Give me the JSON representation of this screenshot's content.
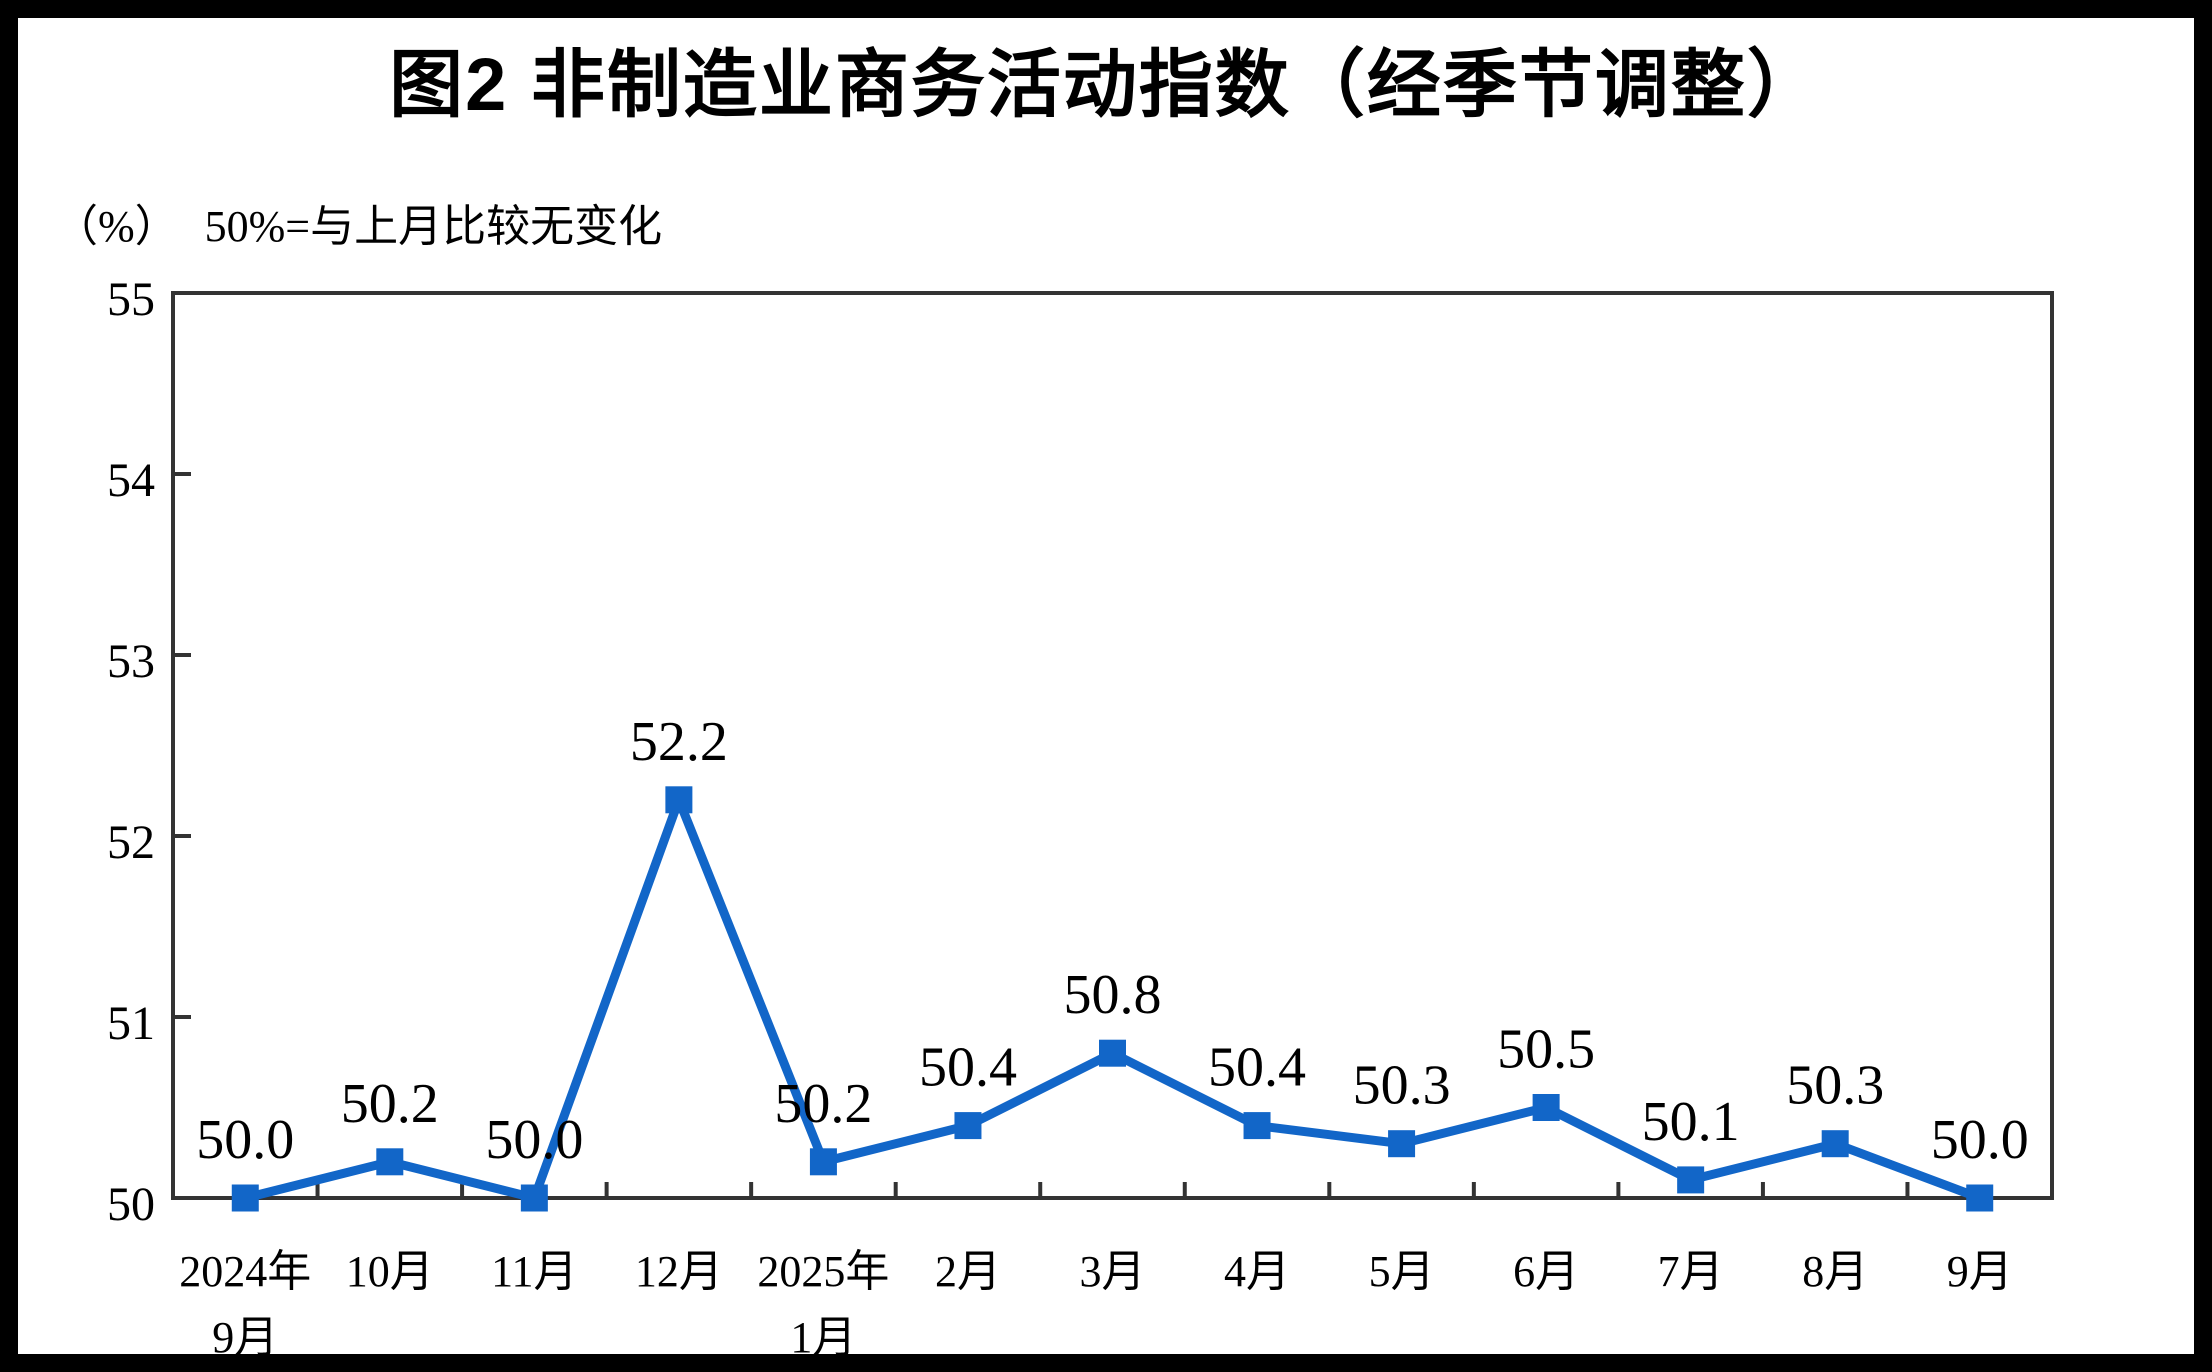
{
  "header": {
    "title": "图2 非制造业商务活动指数（经季节调整）"
  },
  "axis_note": {
    "unit": "（%）",
    "text": "50%=与上月比较无变化"
  },
  "chart_data": {
    "type": "line",
    "title": "图2 非制造业商务活动指数（经季节调整）",
    "subtitle": "（%）50%=与上月比较无变化",
    "categories": [
      [
        "2024年",
        "9月"
      ],
      [
        "10月"
      ],
      [
        "11月"
      ],
      [
        "12月"
      ],
      [
        "2025年",
        "1月"
      ],
      [
        "2月"
      ],
      [
        "3月"
      ],
      [
        "4月"
      ],
      [
        "5月"
      ],
      [
        "6月"
      ],
      [
        "7月"
      ],
      [
        "8月"
      ],
      [
        "9月"
      ]
    ],
    "series": [
      {
        "name": "非制造业商务活动指数",
        "values": [
          50.0,
          50.2,
          50.0,
          52.2,
          50.2,
          50.4,
          50.8,
          50.4,
          50.3,
          50.5,
          50.1,
          50.3,
          50.0
        ]
      }
    ],
    "point_labels": [
      "50.0",
      "50.2",
      "50.0",
      "52.2",
      "50.2",
      "50.4",
      "50.8",
      "50.4",
      "50.3",
      "50.5",
      "50.1",
      "50.3",
      "50.0"
    ],
    "ylim": [
      50,
      55
    ],
    "yticks": [
      "50",
      "51",
      "52",
      "53",
      "54",
      "55"
    ],
    "xlabel": "",
    "ylabel": "",
    "grid": false,
    "legend_position": "none",
    "line_color": "#1266C8",
    "marker": "square",
    "axis_color": "#333333",
    "text_color": "#000000"
  }
}
